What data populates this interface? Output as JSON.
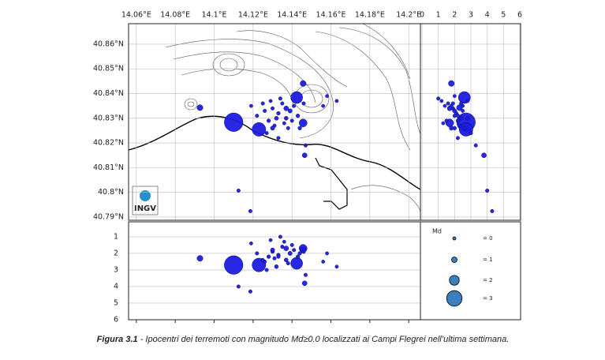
{
  "chart_data": {
    "type": "scatter",
    "x": [
      14.11,
      14.123,
      14.1424,
      14.1457,
      14.1457,
      14.0927,
      14.1465,
      14.1125,
      14.1186,
      14.13,
      14.133,
      14.135,
      14.137,
      14.139,
      14.141,
      14.128,
      14.126,
      14.131,
      14.136,
      14.143,
      14.134,
      14.129,
      14.138,
      14.132,
      14.14,
      14.122,
      14.119,
      14.146,
      14.144,
      14.127,
      14.133,
      14.125,
      14.137,
      14.13,
      14.147,
      14.156,
      14.158,
      14.163
    ],
    "values": [
      40.8284,
      40.8255,
      40.8384,
      40.8281,
      40.8441,
      40.8343,
      40.815,
      40.8007,
      40.7924,
      40.834,
      40.832,
      40.836,
      40.83,
      40.833,
      40.835,
      40.829,
      40.833,
      40.827,
      40.828,
      40.831,
      40.838,
      40.837,
      40.826,
      40.83,
      40.829,
      40.831,
      40.835,
      40.836,
      40.826,
      40.824,
      40.822,
      40.836,
      40.834,
      40.826,
      40.819,
      40.835,
      40.839,
      40.837
    ],
    "depth": [
      2.7,
      2.7,
      2.6,
      1.7,
      1.8,
      2.3,
      3.8,
      4.0,
      4.3,
      1.9,
      2.1,
      1.6,
      2.4,
      2.0,
      1.8,
      2.2,
      2.5,
      2.3,
      1.3,
      2.2,
      1.0,
      1.2,
      2.6,
      2.8,
      1.5,
      2.0,
      1.4,
      1.9,
      2.0,
      3.0,
      2.2,
      2.4,
      1.7,
      1.8,
      3.3,
      2.5,
      2.0,
      2.8
    ],
    "sizes": [
      3.5,
      2.7,
      2.4,
      1.6,
      1.1,
      1.1,
      0.8,
      0.3,
      0.3,
      0.3,
      0.4,
      0.3,
      0.5,
      0.6,
      0.3,
      0.4,
      0.3,
      0.3,
      0.2,
      0.4,
      0.3,
      0.2,
      0.3,
      0.5,
      0.3,
      0.3,
      0.2,
      0.3,
      0.4,
      0.3,
      0.3,
      0.3,
      0.8,
      0.6,
      0.3,
      0.2,
      0.2,
      0.2
    ],
    "color": "#1c1ce0",
    "xlim": [
      14.056,
      14.206
    ],
    "ylim": [
      40.7887,
      40.8683
    ],
    "xticks": [
      {
        "value": 14.06,
        "label": "14.06°E"
      },
      {
        "value": 14.08,
        "label": "14.08°E"
      },
      {
        "value": 14.1,
        "label": "14.1°E"
      },
      {
        "value": 14.12,
        "label": "14.12°E"
      },
      {
        "value": 14.14,
        "label": "14.14°E"
      },
      {
        "value": 14.16,
        "label": "14.16°E"
      },
      {
        "value": 14.18,
        "label": "14.18°E"
      },
      {
        "value": 14.2,
        "label": "14.2°E"
      }
    ],
    "yticks": [
      {
        "value": 40.79,
        "label": "40.79°N"
      },
      {
        "value": 40.8,
        "label": "40.8°N"
      },
      {
        "value": 40.81,
        "label": "40.81°N"
      },
      {
        "value": 40.82,
        "label": "40.82°N"
      },
      {
        "value": 40.83,
        "label": "40.83°N"
      },
      {
        "value": 40.84,
        "label": "40.84°N"
      },
      {
        "value": 40.85,
        "label": "40.85°N"
      },
      {
        "value": 40.86,
        "label": "40.86°N"
      }
    ],
    "depth_xlim": [
      0,
      6
    ],
    "depth_xticks": [
      0,
      1,
      2,
      3,
      4,
      5,
      6
    ],
    "depth_ylim": [
      6,
      0.1
    ],
    "depth_yticks": [
      1,
      2,
      3,
      4,
      5,
      6
    ],
    "grid": true,
    "legend": {
      "title": "Md",
      "sizes": [
        {
          "value": 0,
          "label": "= 0"
        },
        {
          "value": 1,
          "label": "= 1"
        },
        {
          "value": 2,
          "label": "= 2"
        },
        {
          "value": 3,
          "label": "= 3"
        }
      ],
      "color": "#3a7fc0"
    },
    "logo": "INGV"
  },
  "caption": {
    "label": "Figura 3.1",
    "text": " - Ipocentri dei terremoti con magnitudo Md≥0.0 localizzati ai Campi Flegrei nell’ultima settimana."
  }
}
